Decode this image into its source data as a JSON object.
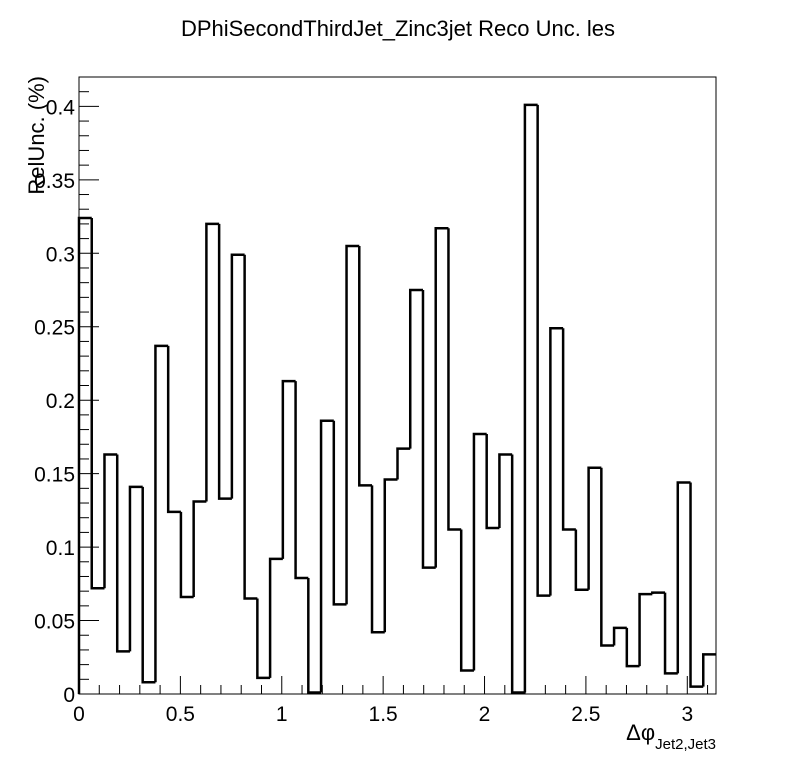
{
  "chart_data": {
    "type": "histogram-step",
    "title": "DPhiSecondThirdJet_Zinc3jet Reco Unc. les",
    "ylabel": "RelUnc. (%)",
    "xlabel": {
      "main": "Δφ",
      "subscript": "Jet2,Jet3"
    },
    "xlim": [
      0,
      3.1416
    ],
    "ylim": [
      0,
      0.42
    ],
    "x_ticks": [
      0,
      0.5,
      1,
      1.5,
      2,
      2.5,
      3
    ],
    "x_tick_labels": [
      "0",
      "0.5",
      "1",
      "1.5",
      "2",
      "2.5",
      "3"
    ],
    "y_ticks": [
      0,
      0.05,
      0.1,
      0.15,
      0.2,
      0.25,
      0.3,
      0.35,
      0.4
    ],
    "y_tick_labels": [
      "0",
      "0.05",
      "0.1",
      "0.15",
      "0.2",
      "0.25",
      "0.3",
      "0.35",
      "0.4"
    ],
    "bin_count": 50,
    "values": [
      0.324,
      0.072,
      0.163,
      0.029,
      0.141,
      0.008,
      0.237,
      0.124,
      0.066,
      0.131,
      0.32,
      0.133,
      0.299,
      0.065,
      0.011,
      0.092,
      0.213,
      0.079,
      0.001,
      0.186,
      0.061,
      0.305,
      0.142,
      0.042,
      0.146,
      0.167,
      0.275,
      0.086,
      0.317,
      0.112,
      0.016,
      0.177,
      0.113,
      0.163,
      0.001,
      0.401,
      0.067,
      0.249,
      0.112,
      0.071,
      0.154,
      0.033,
      0.045,
      0.019,
      0.068,
      0.069,
      0.014,
      0.144,
      0.005,
      0.027
    ],
    "line_color": "#000000",
    "grid": false,
    "legend": "none"
  }
}
